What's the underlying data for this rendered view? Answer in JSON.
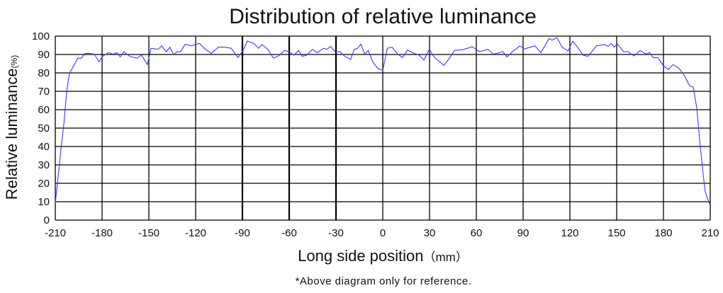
{
  "chart_data": {
    "type": "line",
    "title": "Distribution of relative luminance",
    "xlabel": "Long side position",
    "xlabel_unit": "（mm）",
    "ylabel": "Relative luminance",
    "ylabel_unit": "(%)",
    "footnote": "*Above diagram only for reference.",
    "xlim": [
      -210,
      210
    ],
    "ylim": [
      0,
      100
    ],
    "xticks": [
      -210,
      -180,
      -150,
      -120,
      -90,
      -60,
      -30,
      0,
      30,
      60,
      90,
      120,
      150,
      180,
      210
    ],
    "yticks": [
      0,
      10,
      20,
      30,
      40,
      50,
      60,
      70,
      80,
      90,
      100
    ],
    "grid": true,
    "line_color": "#3a3aff",
    "series": [
      {
        "x": [
          -210,
          -208.5,
          -206.2,
          -204.4,
          -202.7,
          -200.9,
          -199.4,
          -195.6,
          -193.3,
          -191,
          -188,
          -185,
          -182,
          -179.7,
          -176,
          -172.9,
          -170.6,
          -168.3,
          -166,
          -162.3,
          -157.7,
          -154.7,
          -151,
          -148.6,
          -144,
          -141.8,
          -138.8,
          -136.5,
          -134.2,
          -131.9,
          -129.7,
          -126.7,
          -122.9,
          -117.6,
          -114.5,
          -110,
          -105.4,
          -101.7,
          -97.1,
          -92.9,
          -89.6,
          -86.8,
          -82.7,
          -79.7,
          -77.5,
          -73.7,
          -70.2,
          -66.9,
          -63,
          -60,
          -57,
          -54,
          -51.7,
          -48.8,
          -45,
          -42,
          -38,
          -35.8,
          -33.5,
          -30.5,
          -27.4,
          -24.4,
          -20.6,
          -18.3,
          -16.1,
          -14.1,
          -11.5,
          -9.3,
          -6.3,
          -3.2,
          0,
          2.9,
          5.9,
          9.7,
          12.7,
          15.8,
          19.5,
          23.3,
          26.4,
          29.8,
          33.2,
          39.2,
          43,
          46,
          51.4,
          57.4,
          62,
          67.3,
          71,
          77.1,
          79.7,
          83.2,
          88,
          90.8,
          97.6,
          101.4,
          106.7,
          108.6,
          111.7,
          115,
          118.8,
          121.8,
          124.8,
          128.6,
          131.7,
          137,
          142.3,
          144.5,
          146.5,
          148.3,
          150.6,
          154.4,
          157.4,
          161.2,
          165,
          168.8,
          171.1,
          173.3,
          176.4,
          180.2,
          183.2,
          186.2,
          190,
          193.8,
          196.8,
          199.1,
          201.4,
          203.6,
          205.2,
          206.7,
          208.2,
          209.7
        ],
        "y": [
          9.4,
          21,
          40,
          53,
          70,
          80,
          82,
          88,
          88,
          90.6,
          90.6,
          90.2,
          86,
          89,
          91,
          90.2,
          91,
          88.7,
          91.5,
          89,
          88,
          89.6,
          84.5,
          93.4,
          92.8,
          94.7,
          91.5,
          94,
          90,
          91.5,
          91.5,
          95.6,
          94.7,
          96,
          93.4,
          90.5,
          94,
          94,
          93.4,
          88.3,
          92.2,
          97.3,
          96,
          93.4,
          95.4,
          92.8,
          88,
          89.2,
          92.2,
          91.5,
          89.6,
          92.2,
          89,
          89.6,
          92.8,
          90.9,
          93.4,
          92.8,
          94.4,
          91.5,
          91.5,
          89,
          87.3,
          92.8,
          93.4,
          95.6,
          90.2,
          92.2,
          85.8,
          82.5,
          81.3,
          93.4,
          94,
          90.2,
          88.3,
          92.4,
          90.9,
          89.6,
          87,
          92.8,
          88.3,
          84.1,
          88.3,
          92.2,
          92.6,
          94.2,
          91.5,
          92.8,
          90.2,
          91.5,
          88.7,
          91.5,
          94.7,
          93,
          94.7,
          91,
          98.7,
          97.8,
          99.2,
          94,
          91.9,
          97.3,
          94,
          89.6,
          89,
          94.7,
          95.4,
          94.4,
          96,
          94,
          95.6,
          91.5,
          91.5,
          89.2,
          92.2,
          90.2,
          91.1,
          88.3,
          88.3,
          83.6,
          81.9,
          84.5,
          82.5,
          78,
          72.9,
          72.3,
          60.7,
          40.2,
          27.3,
          15.8,
          11.9,
          8.7
        ]
      }
    ]
  }
}
